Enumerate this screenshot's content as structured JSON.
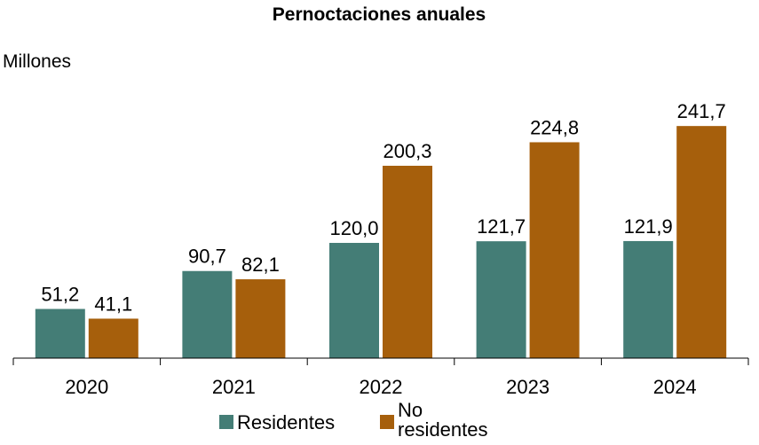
{
  "chart_data": {
    "type": "bar",
    "title": "Pernoctaciones anuales",
    "ylabel": "Millones",
    "xlabel": "",
    "categories": [
      "2020",
      "2021",
      "2022",
      "2023",
      "2024"
    ],
    "series": [
      {
        "name": "Residentes",
        "color": "#447d76",
        "values": [
          51.2,
          90.7,
          120.0,
          121.7,
          121.9
        ],
        "labels": [
          "51,2",
          "90,7",
          "120,0",
          "121,7",
          "121,9"
        ]
      },
      {
        "name": "No residentes",
        "legend_lines": [
          "No",
          "residentes"
        ],
        "color": "#a65f0c",
        "values": [
          41.1,
          82.1,
          200.3,
          224.8,
          241.7
        ],
        "labels": [
          "41,1",
          "82,1",
          "200,3",
          "224,8",
          "241,7"
        ]
      }
    ],
    "ylim": [
      0,
      264
    ],
    "grid": false,
    "legend_position": "bottom"
  }
}
